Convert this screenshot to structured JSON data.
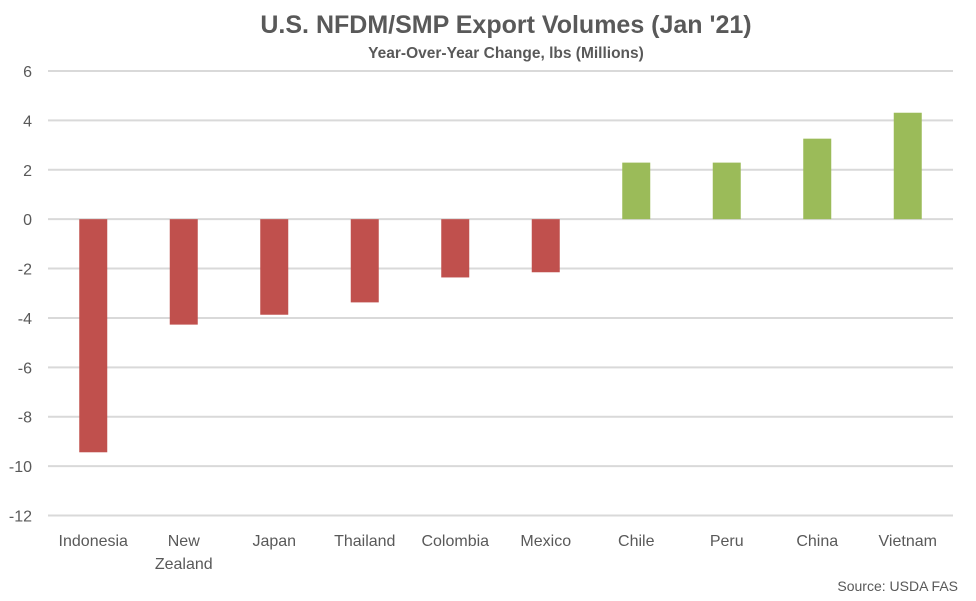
{
  "chart_data": {
    "type": "bar",
    "title": "U.S. NFDM/SMP Export Volumes (Jan '21)",
    "subtitle": "Year-Over-Year Change, lbs (Millions)",
    "xlabel": "",
    "ylabel": "",
    "categories": [
      "Indonesia",
      "New Zealand",
      "Japan",
      "Thailand",
      "Colombia",
      "Mexico",
      "Chile",
      "Peru",
      "China",
      "Vietnam"
    ],
    "category_lines": [
      [
        "Indonesia"
      ],
      [
        "New",
        "Zealand"
      ],
      [
        "Japan"
      ],
      [
        "Thailand"
      ],
      [
        "Colombia"
      ],
      [
        "Mexico"
      ],
      [
        "Chile"
      ],
      [
        "Peru"
      ],
      [
        "China"
      ],
      [
        "Vietnam"
      ]
    ],
    "values": [
      -9.44,
      -4.27,
      -3.87,
      -3.37,
      -2.36,
      -2.15,
      2.29,
      2.29,
      3.26,
      4.31
    ],
    "ylim": [
      -12,
      6
    ],
    "yticks": [
      6,
      4,
      2,
      0,
      -2,
      -4,
      -6,
      -8,
      -10,
      -12
    ],
    "grid": true,
    "legend": "none",
    "colors": {
      "negative": "#c0504d",
      "positive": "#9bbb59",
      "grid": "#d9d9d9",
      "text": "#595959"
    },
    "source": "Source: USDA FAS"
  }
}
